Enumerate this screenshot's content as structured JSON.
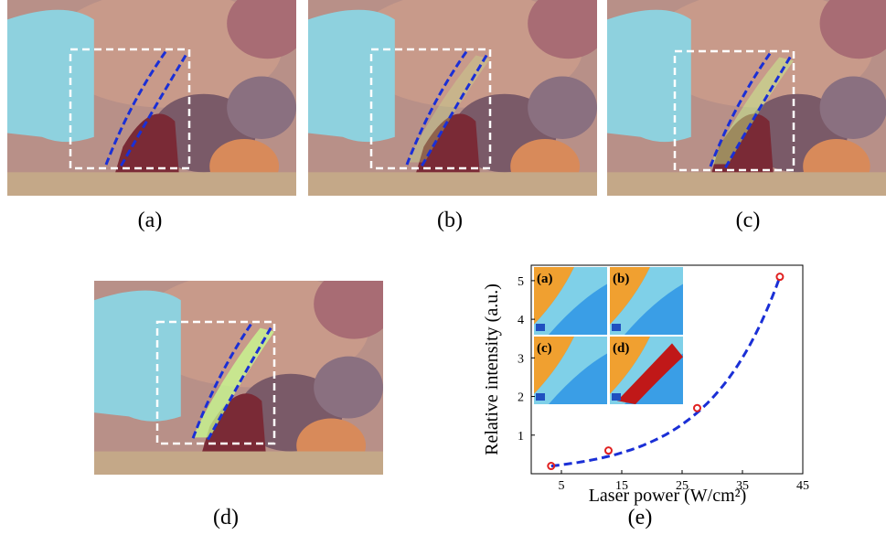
{
  "figure": {
    "panels": [
      {
        "id": "a",
        "caption": "(a)",
        "glow": 0
      },
      {
        "id": "b",
        "caption": "(b)",
        "glow": 0.35
      },
      {
        "id": "c",
        "caption": "(c)",
        "glow": 0.6
      },
      {
        "id": "d",
        "caption": "(d)",
        "glow": 1.0
      }
    ],
    "chart_caption": "(e)"
  },
  "colors": {
    "glove": "#8ed1de",
    "tissue": "#c89a8a",
    "organ": "#7a5a68",
    "liver": "#7a2a36",
    "glow": "#c8ff90",
    "roi_box": "#ffffff",
    "dash_line": "#1a2fd6",
    "marker": "#e02020"
  },
  "chart_data": {
    "type": "scatter",
    "title": "",
    "xlabel": "Laser power (W/cm²)",
    "ylabel": "Relative intensity (a.u.)",
    "xlim": [
      0,
      45
    ],
    "ylim": [
      0,
      5.4
    ],
    "xticks": [
      5,
      15,
      25,
      35,
      45
    ],
    "yticks": [
      1,
      2,
      3,
      4,
      5
    ],
    "series": [
      {
        "values_x": [
          3.3,
          12.8,
          27.5,
          41.2
        ],
        "values_y": [
          0.2,
          0.6,
          1.7,
          5.1
        ],
        "style": "red circles"
      }
    ],
    "fit_curve": "exponential dashed blue",
    "insets": [
      "(a)",
      "(b)",
      "(c)",
      "(d)"
    ]
  }
}
